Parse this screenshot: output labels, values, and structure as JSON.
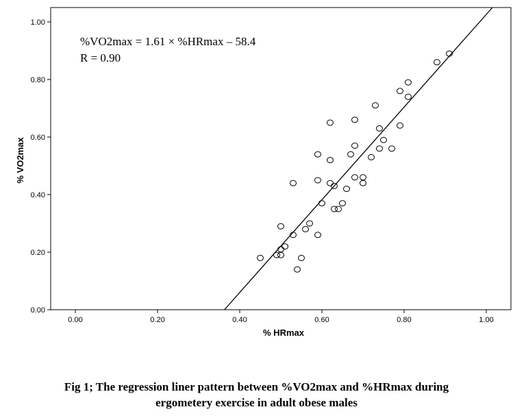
{
  "chart_data": {
    "type": "scatter",
    "xlabel": "% HRmax",
    "ylabel": "% VO2max",
    "xlim": [
      -0.06,
      1.06
    ],
    "ylim": [
      0.0,
      1.05
    ],
    "x_ticks": [
      "0.00",
      "0.20",
      "0.40",
      "0.60",
      "0.80",
      "1.00"
    ],
    "y_ticks": [
      "0.00",
      "0.20",
      "0.40",
      "0.60",
      "0.80",
      "1.00"
    ],
    "annotation_lines": [
      "%VO2max = 1.61 × %HRmax – 58.4",
      "R = 0.90"
    ],
    "regression": {
      "slope": 1.61,
      "intercept": -0.584
    },
    "points": [
      {
        "x": 0.91,
        "y": 0.89
      },
      {
        "x": 0.88,
        "y": 0.86
      },
      {
        "x": 0.81,
        "y": 0.79
      },
      {
        "x": 0.79,
        "y": 0.76
      },
      {
        "x": 0.81,
        "y": 0.74
      },
      {
        "x": 0.73,
        "y": 0.71
      },
      {
        "x": 0.62,
        "y": 0.65
      },
      {
        "x": 0.68,
        "y": 0.66
      },
      {
        "x": 0.74,
        "y": 0.63
      },
      {
        "x": 0.79,
        "y": 0.64
      },
      {
        "x": 0.75,
        "y": 0.59
      },
      {
        "x": 0.68,
        "y": 0.57
      },
      {
        "x": 0.74,
        "y": 0.56
      },
      {
        "x": 0.77,
        "y": 0.56
      },
      {
        "x": 0.59,
        "y": 0.54
      },
      {
        "x": 0.67,
        "y": 0.54
      },
      {
        "x": 0.62,
        "y": 0.52
      },
      {
        "x": 0.72,
        "y": 0.53
      },
      {
        "x": 0.53,
        "y": 0.44
      },
      {
        "x": 0.59,
        "y": 0.45
      },
      {
        "x": 0.62,
        "y": 0.44
      },
      {
        "x": 0.63,
        "y": 0.43
      },
      {
        "x": 0.68,
        "y": 0.46
      },
      {
        "x": 0.7,
        "y": 0.46
      },
      {
        "x": 0.7,
        "y": 0.44
      },
      {
        "x": 0.66,
        "y": 0.42
      },
      {
        "x": 0.6,
        "y": 0.37
      },
      {
        "x": 0.65,
        "y": 0.37
      },
      {
        "x": 0.63,
        "y": 0.35
      },
      {
        "x": 0.64,
        "y": 0.35
      },
      {
        "x": 0.5,
        "y": 0.29
      },
      {
        "x": 0.57,
        "y": 0.3
      },
      {
        "x": 0.56,
        "y": 0.28
      },
      {
        "x": 0.53,
        "y": 0.26
      },
      {
        "x": 0.59,
        "y": 0.26
      },
      {
        "x": 0.51,
        "y": 0.22
      },
      {
        "x": 0.5,
        "y": 0.21
      },
      {
        "x": 0.49,
        "y": 0.19
      },
      {
        "x": 0.5,
        "y": 0.19
      },
      {
        "x": 0.45,
        "y": 0.18
      },
      {
        "x": 0.55,
        "y": 0.18
      },
      {
        "x": 0.54,
        "y": 0.14
      }
    ]
  },
  "caption": {
    "line1": "Fig 1; The regression liner pattern between %VO2max and %HRmax during",
    "line2": "ergometery exercise in adult obese males"
  },
  "colors": {
    "ink": "#000000",
    "background": "#ffffff"
  }
}
